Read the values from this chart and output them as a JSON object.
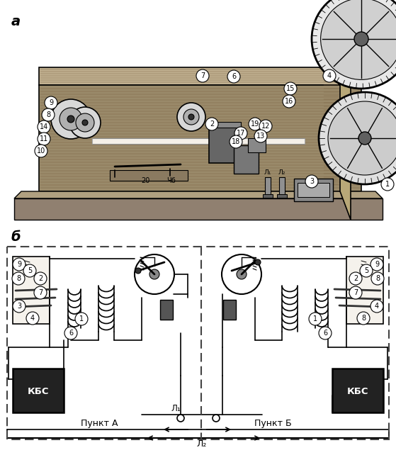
{
  "title_a": "а",
  "title_b": "б",
  "label_kbs": "КБС",
  "label_punkt_a": "Пункт А",
  "label_punkt_b": "Пункт Б",
  "label_l1": "Л₁",
  "label_l2": "Л₂",
  "bg_color": "#ffffff",
  "line_color": "#000000",
  "gray_dark": "#1a1a1a",
  "gray_mid": "#555555",
  "gray_light": "#aaaaaa",
  "wood_dark": "#3a2e1e",
  "wood_mid": "#5a4a30",
  "wood_light": "#7a6a50",
  "fig_width": 5.59,
  "fig_height": 6.42,
  "dpi": 100
}
